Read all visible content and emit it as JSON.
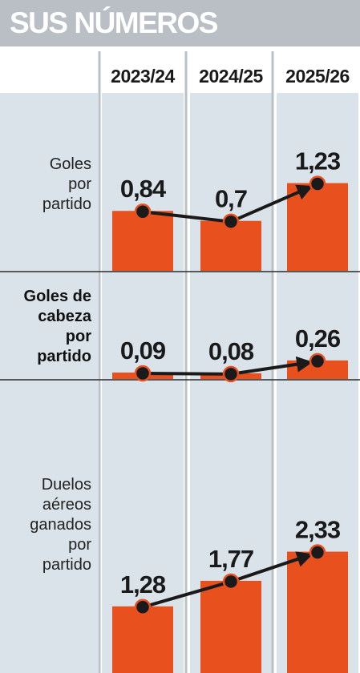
{
  "title": "SUS NÚMEROS",
  "colors": {
    "bar": "#e8501e",
    "panel": "#dbe3ea",
    "header": "#b9bfc4",
    "line": "#1a1a1a"
  },
  "chart_data": {
    "type": "bar",
    "categories": [
      "2023/24",
      "2024/25",
      "2025/26"
    ],
    "series": [
      {
        "label_lines": [
          "Goles",
          "por",
          "partido"
        ],
        "bold": false,
        "values": [
          0.84,
          0.7,
          1.23
        ],
        "value_labels": [
          "0,84",
          "0,7",
          "1,23"
        ]
      },
      {
        "label_lines": [
          "Goles de",
          "cabeza",
          "por",
          "partido"
        ],
        "bold": true,
        "values": [
          0.09,
          0.08,
          0.26
        ],
        "value_labels": [
          "0,09",
          "0,08",
          "0,26"
        ]
      },
      {
        "label_lines": [
          "Duelos",
          "aéreos",
          "ganados",
          "por",
          "partido"
        ],
        "bold": false,
        "values": [
          1.28,
          1.77,
          2.33
        ],
        "value_labels": [
          "1,28",
          "1,77",
          "2,33"
        ]
      }
    ]
  }
}
